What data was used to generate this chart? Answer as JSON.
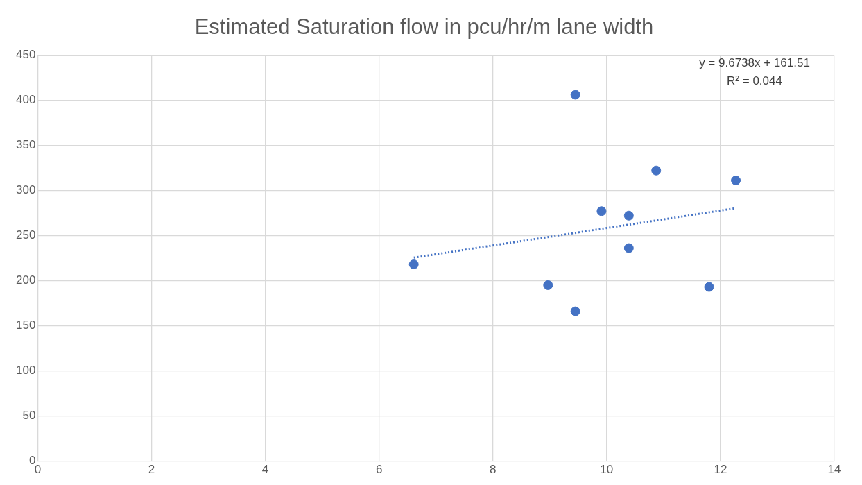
{
  "chart_data": {
    "type": "scatter",
    "title": "Estimated Saturation flow in pcu/hr/m lane width",
    "xlim": [
      0,
      14
    ],
    "xticks": [
      0,
      2,
      4,
      6,
      8,
      10,
      12,
      14
    ],
    "ylim": [
      0,
      450
    ],
    "yticks": [
      0,
      50,
      100,
      150,
      200,
      250,
      300,
      350,
      400,
      450
    ],
    "grid": true,
    "legend": false,
    "marker": "circle",
    "series": [
      {
        "type": "scatter",
        "color": "#4472c4",
        "x": [
          6.61,
          8.97,
          9.45,
          9.45,
          9.91,
          10.39,
          10.39,
          10.87,
          12.27,
          11.8
        ],
        "values": [
          218,
          195,
          166,
          406,
          277,
          272,
          236,
          322,
          311,
          193
        ]
      },
      {
        "type": "line",
        "color": "#4472c4",
        "line_style": "dotted",
        "marker": "none",
        "x": [
          6.61,
          12.27
        ],
        "values": [
          225.5,
          280.2
        ]
      }
    ],
    "annotations": [
      "y = 9.6738x + 161.51",
      "R² = 0.044"
    ]
  }
}
